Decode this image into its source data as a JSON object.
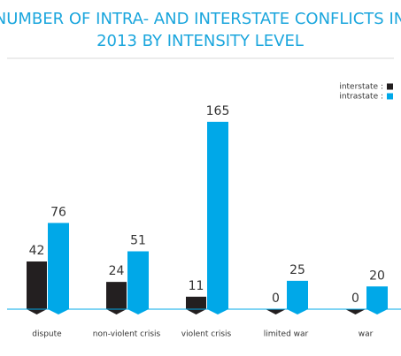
{
  "chart_data": {
    "type": "bar",
    "title": [
      "NUMBER OF INTRA- AND INTERSTATE CONFLICTS IN",
      "2013 BY INTENSITY LEVEL"
    ],
    "categories": [
      "dispute",
      "non-violent crisis",
      "violent crisis",
      "limited war",
      "war"
    ],
    "series": [
      {
        "name": "interstate :",
        "color": "#231f20",
        "values": [
          42,
          24,
          11,
          0,
          0
        ]
      },
      {
        "name": "intrastate :",
        "color": "#00a8e8",
        "values": [
          76,
          51,
          165,
          25,
          20
        ]
      }
    ],
    "ylim": [
      0,
      170
    ],
    "legend": "top-right"
  }
}
